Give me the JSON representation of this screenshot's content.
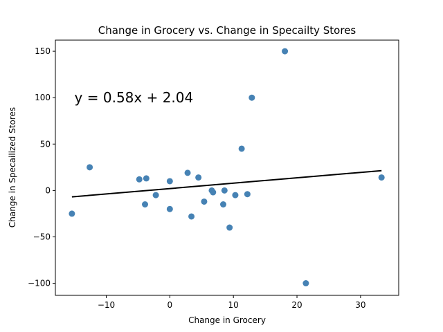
{
  "chart_data": {
    "type": "scatter",
    "title": "Change in Grocery vs. Change in Specailty Stores",
    "xlabel": "Change in Grocery",
    "ylabel": "Change in Specailized Stores",
    "xlim": [
      -18,
      36
    ],
    "ylim": [
      -113,
      162
    ],
    "xticks": [
      -10,
      0,
      10,
      20,
      30
    ],
    "yticks": [
      -100,
      -50,
      0,
      50,
      100,
      150
    ],
    "xtick_labels": [
      "−10",
      "0",
      "10",
      "20",
      "30"
    ],
    "ytick_labels": [
      "−100",
      "−50",
      "0",
      "50",
      "100",
      "150"
    ],
    "grid": false,
    "marker_color": "#4682b4",
    "line_color": "#000000",
    "points": [
      {
        "x": -15.4,
        "y": -25
      },
      {
        "x": -12.6,
        "y": 25
      },
      {
        "x": -4.8,
        "y": 12
      },
      {
        "x": -3.9,
        "y": -15
      },
      {
        "x": -3.7,
        "y": 13
      },
      {
        "x": -2.2,
        "y": -5
      },
      {
        "x": 0.0,
        "y": 10
      },
      {
        "x": 0.0,
        "y": -20
      },
      {
        "x": 2.8,
        "y": 19
      },
      {
        "x": 3.4,
        "y": -28
      },
      {
        "x": 4.5,
        "y": 14
      },
      {
        "x": 5.4,
        "y": -12
      },
      {
        "x": 6.6,
        "y": 0
      },
      {
        "x": 6.8,
        "y": -2
      },
      {
        "x": 8.4,
        "y": -15
      },
      {
        "x": 8.6,
        "y": 0
      },
      {
        "x": 9.4,
        "y": -40
      },
      {
        "x": 10.3,
        "y": -5
      },
      {
        "x": 11.3,
        "y": 45
      },
      {
        "x": 12.2,
        "y": -4
      },
      {
        "x": 12.9,
        "y": 100
      },
      {
        "x": 18.1,
        "y": 150
      },
      {
        "x": 21.4,
        "y": -100
      },
      {
        "x": 33.3,
        "y": 14
      }
    ],
    "regression": {
      "slope": 0.58,
      "intercept": 2.04,
      "x_range": [
        -15.4,
        33.3
      ],
      "equation_text": "y = 0.58x + 2.04",
      "equation_anchor": {
        "x": -15.0,
        "y": 100
      }
    }
  }
}
